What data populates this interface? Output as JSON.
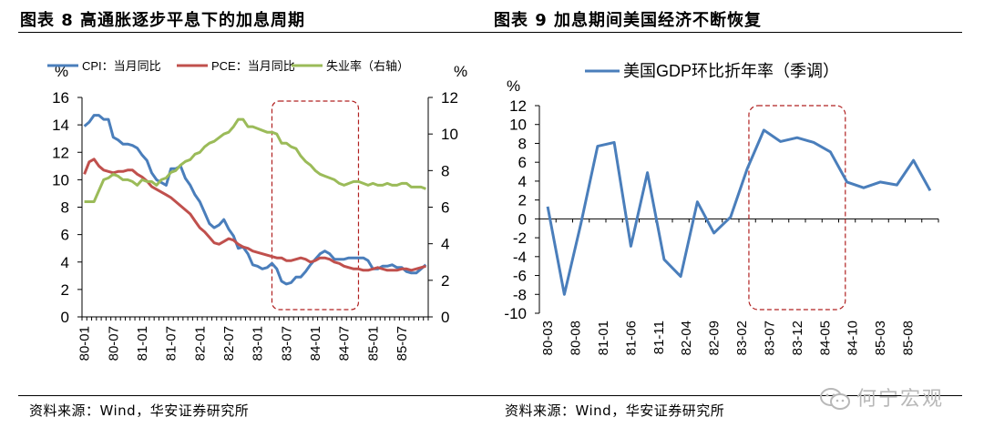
{
  "header": {
    "left_title": "图表 8  高通胀逐步平息下的加息周期",
    "right_title": "图表 9  加息期间美国经济不断恢复"
  },
  "footer": {
    "left_source": "资料来源：Wind，华安证券研究所",
    "right_source": "资料来源：Wind，华安证券研究所",
    "watermark": "何宁宏观"
  },
  "chart_data": [
    {
      "type": "line",
      "title": "图表 8  高通胀逐步平息下的加息周期",
      "ylabel_left": "%",
      "ylabel_right": "%",
      "ylim_left": [
        0,
        16
      ],
      "yticks_left": [
        "0",
        "2",
        "4",
        "6",
        "8",
        "10",
        "12",
        "14",
        "16"
      ],
      "ylim_right": [
        0,
        12
      ],
      "yticks_right": [
        "0",
        "2",
        "4",
        "6",
        "8",
        "10",
        "12"
      ],
      "xticks": [
        "80-01",
        "80-07",
        "81-01",
        "81-07",
        "82-01",
        "82-07",
        "83-01",
        "83-07",
        "84-01",
        "84-07",
        "85-01",
        "85-07"
      ],
      "legend": [
        "CPI：当月同比",
        "PCE：当月同比",
        "失业率（右轴）"
      ],
      "series": [
        {
          "name": "CPI：当月同比",
          "axis": "left",
          "color": "#4a7ebb",
          "values": [
            13.9,
            14.2,
            14.7,
            14.7,
            14.4,
            14.4,
            13.1,
            12.9,
            12.6,
            12.6,
            12.5,
            12.3,
            11.8,
            11.4,
            10.5,
            10.0,
            9.8,
            9.6,
            10.8,
            10.8,
            11.0,
            10.1,
            9.6,
            8.9,
            8.4,
            7.6,
            6.8,
            6.5,
            6.7,
            7.1,
            6.4,
            5.9,
            5.0,
            5.1,
            4.6,
            3.8,
            3.7,
            3.5,
            3.6,
            3.9,
            3.5,
            2.6,
            2.4,
            2.5,
            2.9,
            2.9,
            3.3,
            3.8,
            4.2,
            4.6,
            4.8,
            4.6,
            4.2,
            4.2,
            4.2,
            4.3,
            4.3,
            4.3,
            4.3,
            4.1,
            3.5,
            3.5,
            3.7,
            3.7,
            3.8,
            3.6,
            3.6,
            3.3,
            3.2,
            3.2,
            3.5,
            3.8
          ]
        },
        {
          "name": "PCE：当月同比",
          "axis": "left",
          "color": "#c0504d",
          "values": [
            10.4,
            11.3,
            11.5,
            11.0,
            10.7,
            10.6,
            10.5,
            10.6,
            10.6,
            10.7,
            10.7,
            10.4,
            10.2,
            9.9,
            9.5,
            9.3,
            9.1,
            8.9,
            8.7,
            8.4,
            8.1,
            7.8,
            7.5,
            7.0,
            6.5,
            6.2,
            5.8,
            5.4,
            5.3,
            5.5,
            5.7,
            5.6,
            5.3,
            5.1,
            5.0,
            4.8,
            4.7,
            4.6,
            4.5,
            4.4,
            4.3,
            4.3,
            4.1,
            4.1,
            4.2,
            4.3,
            4.2,
            4.0,
            4.1,
            4.3,
            4.3,
            4.2,
            4.0,
            3.9,
            3.7,
            3.6,
            3.5,
            3.5,
            3.4,
            3.4,
            3.5,
            3.6,
            3.5,
            3.4,
            3.4,
            3.4,
            3.5,
            3.5,
            3.4,
            3.5,
            3.6,
            3.7
          ]
        },
        {
          "name": "失业率（右轴）",
          "axis": "right",
          "color": "#9bbb59",
          "values": [
            6.3,
            6.3,
            6.3,
            6.9,
            7.5,
            7.6,
            7.8,
            7.7,
            7.5,
            7.5,
            7.4,
            7.2,
            7.5,
            7.4,
            7.4,
            7.2,
            7.5,
            7.6,
            7.9,
            8.0,
            8.3,
            8.5,
            8.6,
            8.9,
            9.0,
            9.3,
            9.5,
            9.6,
            9.8,
            10.0,
            10.1,
            10.4,
            10.8,
            10.8,
            10.4,
            10.4,
            10.3,
            10.2,
            10.1,
            10.1,
            10.0,
            9.5,
            9.5,
            9.3,
            9.2,
            8.8,
            8.5,
            8.3,
            8.0,
            7.8,
            7.7,
            7.6,
            7.5,
            7.3,
            7.2,
            7.3,
            7.4,
            7.4,
            7.3,
            7.2,
            7.3,
            7.2,
            7.2,
            7.3,
            7.2,
            7.2,
            7.3,
            7.3,
            7.1,
            7.1,
            7.1,
            7.0
          ]
        }
      ],
      "highlight_box": {
        "from_index": 39,
        "to_index": 57,
        "label": ""
      }
    },
    {
      "type": "line",
      "title": "图表 9  加息期间美国经济不断恢复",
      "ylabel": "%",
      "ylim": [
        -10,
        12
      ],
      "yticks": [
        "-10",
        "-8",
        "-6",
        "-4",
        "-2",
        "0",
        "2",
        "4",
        "6",
        "8",
        "10",
        "12"
      ],
      "xticks": [
        "80-03",
        "80-08",
        "81-01",
        "81-06",
        "81-11",
        "82-04",
        "82-09",
        "83-02",
        "83-07",
        "83-12",
        "84-05",
        "84-10",
        "85-03",
        "85-08"
      ],
      "legend": [
        "美国GDP环比折年率（季调）"
      ],
      "series": [
        {
          "name": "美国GDP环比折年率（季调）",
          "color": "#4a7ebb",
          "x": [
            "80-03",
            "80-06",
            "80-09",
            "80-12",
            "81-03",
            "81-06",
            "81-09",
            "81-12",
            "82-03",
            "82-06",
            "82-09",
            "82-12",
            "83-03",
            "83-06",
            "83-09",
            "83-12",
            "84-03",
            "84-06",
            "84-09",
            "84-12",
            "85-03",
            "85-06",
            "85-09",
            "85-12"
          ],
          "values": [
            1.3,
            -8.0,
            -0.5,
            7.7,
            8.1,
            -2.9,
            4.9,
            -4.3,
            -6.1,
            1.8,
            -1.5,
            0.2,
            5.3,
            9.4,
            8.2,
            8.6,
            8.1,
            7.1,
            3.9,
            3.3,
            3.9,
            3.6,
            6.2,
            3.0
          ]
        }
      ],
      "highlight_box": {
        "from_index": 13,
        "to_index": 17,
        "label": ""
      }
    }
  ]
}
